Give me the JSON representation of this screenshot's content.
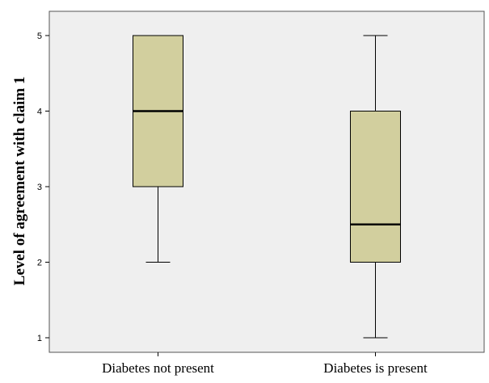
{
  "chart_data": {
    "type": "box",
    "ylabel": "Level of agreement with claim 1",
    "xlabel": "",
    "categories": [
      "Diabetes not present",
      "Diabetes is present"
    ],
    "yticks": [
      1,
      2,
      3,
      4,
      5
    ],
    "ylim": [
      0.85,
      5.3
    ],
    "boxes": [
      {
        "category": "Diabetes not present",
        "min": 2,
        "q1": 3,
        "median": 4,
        "q3": 5,
        "max": 5
      },
      {
        "category": "Diabetes is present",
        "min": 1,
        "q1": 2,
        "median": 2.5,
        "q3": 4,
        "max": 5
      }
    ],
    "grid": false,
    "colors": {
      "box_fill": "#d2cf9e",
      "plot_background": "#efefef",
      "stroke": "#000000"
    }
  }
}
